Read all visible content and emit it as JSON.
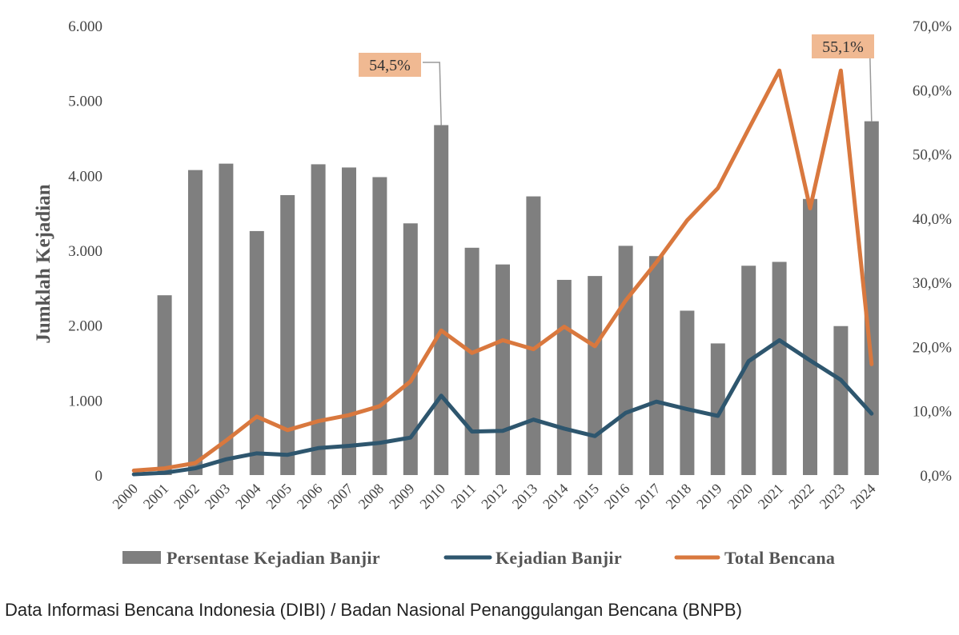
{
  "caption": "Data Informasi Bencana Indonesia (DIBI) / Badan Nasional Penanggulangan Bencana (BNPB)",
  "chart_data": {
    "type": "bar",
    "categories": [
      "2000",
      "2001",
      "2002",
      "2003",
      "2004",
      "2005",
      "2006",
      "2007",
      "2008",
      "2009",
      "2010",
      "2011",
      "2012",
      "2013",
      "2014",
      "2015",
      "2016",
      "2017",
      "2018",
      "2019",
      "2020",
      "2021",
      "2022",
      "2023",
      "2024"
    ],
    "ylabel": "Jumklah Kejadian",
    "y_left": {
      "range": [
        0,
        6000
      ],
      "ticks": [
        0,
        1000,
        2000,
        3000,
        4000,
        5000,
        6000
      ],
      "tick_labels": [
        "0",
        "1.000",
        "2.000",
        "3.000",
        "4.000",
        "5.000",
        "6.000"
      ]
    },
    "y_right": {
      "range": [
        0,
        70
      ],
      "ticks": [
        0,
        10,
        20,
        30,
        40,
        50,
        60,
        70
      ],
      "tick_labels": [
        "0,0%",
        "10,0%",
        "20,0%",
        "30,0%",
        "40,0%",
        "50,0%",
        "60,0%",
        "70,0%"
      ]
    },
    "grid": false,
    "legend_position": "bottom",
    "series": [
      {
        "name": "Persentase Kejadian Banjir",
        "type": "bar",
        "axis": "right",
        "color": "#7f7f7f",
        "values": [
          0,
          28.0,
          47.5,
          48.5,
          38.0,
          43.6,
          48.4,
          47.9,
          46.4,
          39.2,
          54.5,
          35.4,
          32.8,
          43.4,
          30.4,
          31.0,
          35.7,
          34.1,
          25.6,
          20.5,
          32.6,
          33.2,
          43.0,
          23.2,
          55.1
        ]
      },
      {
        "name": "Kejadian Banjir",
        "type": "line",
        "axis": "left",
        "color": "#2e566e",
        "values": [
          10,
          30,
          90,
          210,
          290,
          270,
          360,
          390,
          430,
          500,
          1060,
          580,
          590,
          740,
          620,
          520,
          830,
          980,
          880,
          790,
          1520,
          1800,
          1530,
          1270,
          820
        ]
      },
      {
        "name": "Total Bencana",
        "type": "line",
        "axis": "left",
        "color": "#d9783e",
        "values": [
          60,
          90,
          160,
          460,
          780,
          600,
          720,
          800,
          920,
          1250,
          1930,
          1630,
          1800,
          1680,
          1980,
          1720,
          2330,
          2840,
          3400,
          3830,
          4620,
          5400,
          3560,
          5400,
          1480
        ]
      }
    ],
    "annotations": [
      {
        "text": "54,5%",
        "category": "2010",
        "series": "Persentase Kejadian Banjir",
        "fill": "#f0b992"
      },
      {
        "text": "55,1%",
        "category": "2024",
        "series": "Persentase Kejadian Banjir",
        "fill": "#f0b992"
      }
    ]
  }
}
